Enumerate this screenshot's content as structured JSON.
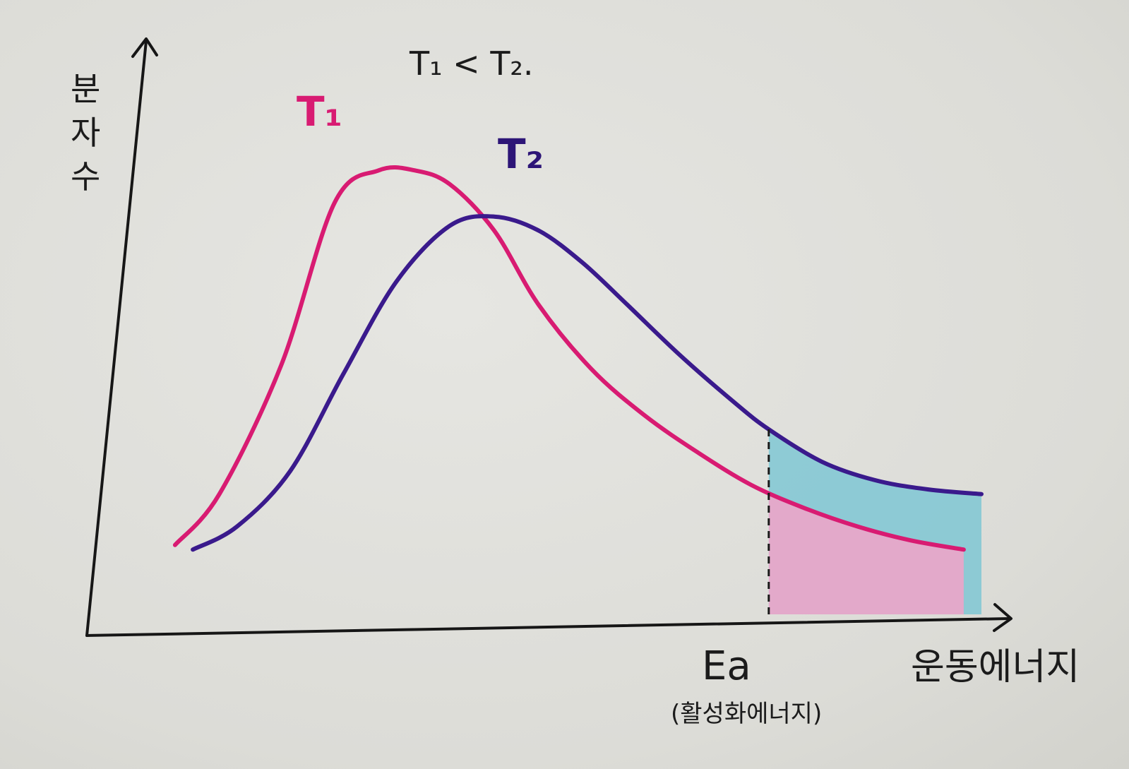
{
  "chart_data": {
    "type": "line",
    "title": "T₁ < T₂.",
    "ylabel": "분자수",
    "xlabel": "운동에너지",
    "threshold_label": "Ea",
    "threshold_sublabel": "(활성화에너지)",
    "threshold_x": 7.6,
    "xlim": [
      0,
      10
    ],
    "ylim": [
      0,
      10
    ],
    "series": [
      {
        "name": "T₁",
        "color": "#d81b72",
        "x": [
          0.9,
          1.4,
          2.1,
          2.7,
          3.2,
          3.6,
          4.0,
          4.5,
          5.0,
          5.6,
          6.2,
          6.8,
          7.4,
          8.0,
          8.6,
          9.2,
          9.8
        ],
        "y": [
          1.5,
          2.6,
          5.4,
          8.9,
          9.6,
          9.6,
          9.3,
          8.3,
          6.7,
          5.3,
          4.3,
          3.5,
          2.8,
          2.3,
          1.9,
          1.6,
          1.4
        ]
      },
      {
        "name": "T₂",
        "color": "#3a1a8c",
        "x": [
          1.1,
          1.6,
          2.2,
          2.8,
          3.4,
          4.0,
          4.5,
          5.0,
          5.5,
          6.0,
          6.6,
          7.2,
          7.6,
          8.2,
          8.8,
          9.4,
          10.0
        ],
        "y": [
          1.4,
          1.9,
          3.1,
          5.2,
          7.2,
          8.4,
          8.6,
          8.3,
          7.6,
          6.7,
          5.6,
          4.6,
          4.0,
          3.3,
          2.9,
          2.7,
          2.6
        ]
      }
    ],
    "shading": [
      {
        "series": "T₂",
        "color": "#7fc7d4",
        "from_x": 7.6
      },
      {
        "series": "T₁",
        "color": "#f2a3c8",
        "from_x": 7.6
      }
    ]
  }
}
